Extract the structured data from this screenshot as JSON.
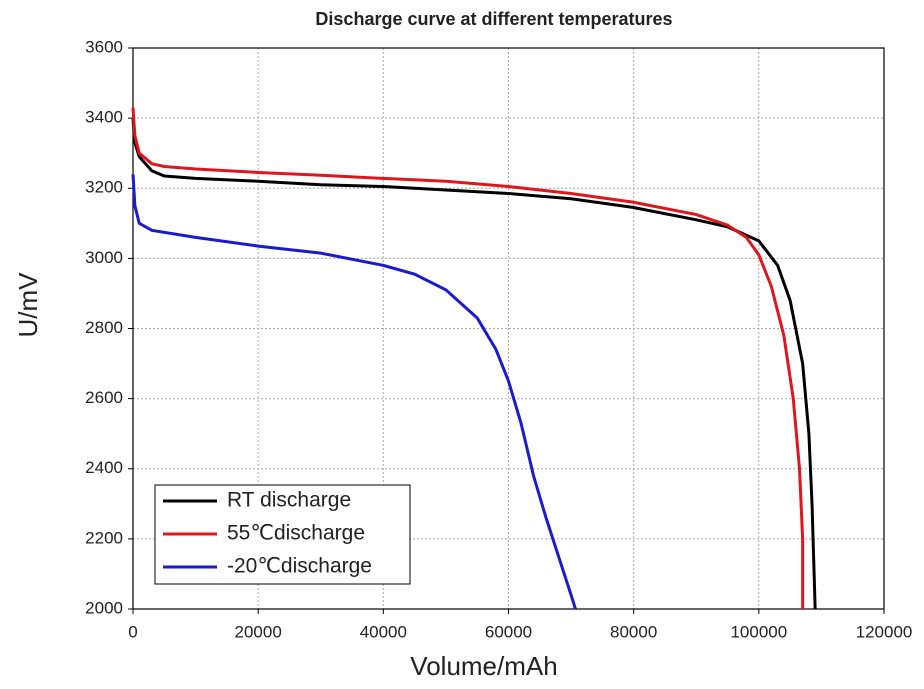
{
  "chart_data": {
    "type": "line",
    "title": "Discharge curve at different temperatures",
    "x_label": "Volume/mAh",
    "y_label": "U/mV",
    "xlim": [
      0,
      120000
    ],
    "xticks": [
      0,
      20000,
      40000,
      60000,
      80000,
      100000,
      120000
    ],
    "ylim": [
      2000,
      3600
    ],
    "yticks": [
      2000,
      2200,
      2400,
      2600,
      2800,
      3000,
      3200,
      3400,
      3600
    ],
    "grid": true,
    "legend": "lower left",
    "series": [
      {
        "name": "RT discharge",
        "color": "#000000",
        "x": [
          0,
          300,
          1000,
          3000,
          5000,
          10000,
          20000,
          30000,
          40000,
          50000,
          60000,
          70000,
          80000,
          90000,
          95000,
          100000,
          103000,
          105000,
          107000,
          108000,
          108500,
          109000
        ],
        "values": [
          3400,
          3330,
          3290,
          3250,
          3235,
          3228,
          3220,
          3210,
          3205,
          3195,
          3185,
          3170,
          3145,
          3110,
          3090,
          3050,
          2980,
          2880,
          2700,
          2500,
          2300,
          2000
        ]
      },
      {
        "name": "55℃discharge",
        "color": "#e0161e",
        "x": [
          0,
          300,
          1000,
          3000,
          5000,
          10000,
          20000,
          30000,
          40000,
          50000,
          60000,
          70000,
          80000,
          90000,
          95000,
          98000,
          100000,
          102000,
          104000,
          105500,
          106500,
          107000,
          107000
        ],
        "values": [
          3430,
          3350,
          3300,
          3270,
          3262,
          3255,
          3245,
          3237,
          3228,
          3220,
          3205,
          3185,
          3160,
          3125,
          3095,
          3060,
          3010,
          2920,
          2780,
          2600,
          2400,
          2200,
          2000
        ]
      },
      {
        "name": "-20℃discharge",
        "color": "#1a1ad0",
        "x": [
          0,
          300,
          1000,
          3000,
          10000,
          20000,
          30000,
          40000,
          45000,
          50000,
          55000,
          58000,
          60000,
          62000,
          64000,
          66000,
          68000,
          70000,
          70700
        ],
        "values": [
          3240,
          3150,
          3100,
          3080,
          3060,
          3035,
          3015,
          2980,
          2955,
          2910,
          2830,
          2740,
          2650,
          2530,
          2380,
          2260,
          2150,
          2040,
          2000
        ]
      }
    ]
  }
}
